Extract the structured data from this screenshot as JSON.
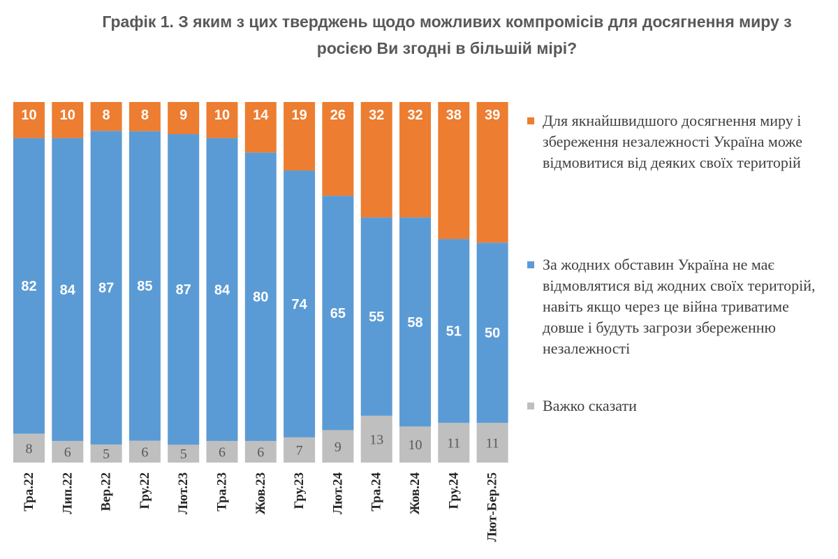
{
  "chart_data": {
    "type": "bar",
    "stacked": true,
    "title_lines": [
      "Графік 1. З яким з цих тверджень щодо можливих компромісів для досягнення миру з",
      "росією Ви згодні в більшій мірі?"
    ],
    "categories": [
      "Тра.22",
      "Лип.22",
      "Вер.22",
      "Гру.22",
      "Лют.23",
      "Тра.23",
      "Жов.23",
      "Гру.23",
      "Лют.24",
      "Тра.24",
      "Жов.24",
      "Гру.24",
      "Лют-Бер.25"
    ],
    "series": [
      {
        "name": "Важко сказати",
        "color": "#bfbfbf",
        "label_color": "#595959",
        "values": [
          8,
          6,
          5,
          6,
          5,
          6,
          6,
          7,
          9,
          13,
          10,
          11,
          11
        ]
      },
      {
        "name": "За жодних обставин Україна не має відмовлятися від жодних своїх територій, навіть якщо через це війна триватиме довше і будуть загрози збереженню незалежності",
        "color": "#5b9bd5",
        "label_color": "#ffffff",
        "values": [
          82,
          84,
          87,
          85,
          87,
          84,
          80,
          74,
          65,
          55,
          58,
          51,
          50
        ]
      },
      {
        "name": "Для якнайшвидшого досягнення миру і збереження незалежності Україна може відмовитися від деяких своїх територій",
        "color": "#ed7d31",
        "label_color": "#ffffff",
        "values": [
          10,
          10,
          8,
          8,
          9,
          10,
          14,
          19,
          26,
          32,
          32,
          38,
          39
        ]
      }
    ],
    "ylim": [
      0,
      100
    ],
    "legend_order": [
      2,
      1,
      0
    ],
    "legend_position": "right"
  }
}
